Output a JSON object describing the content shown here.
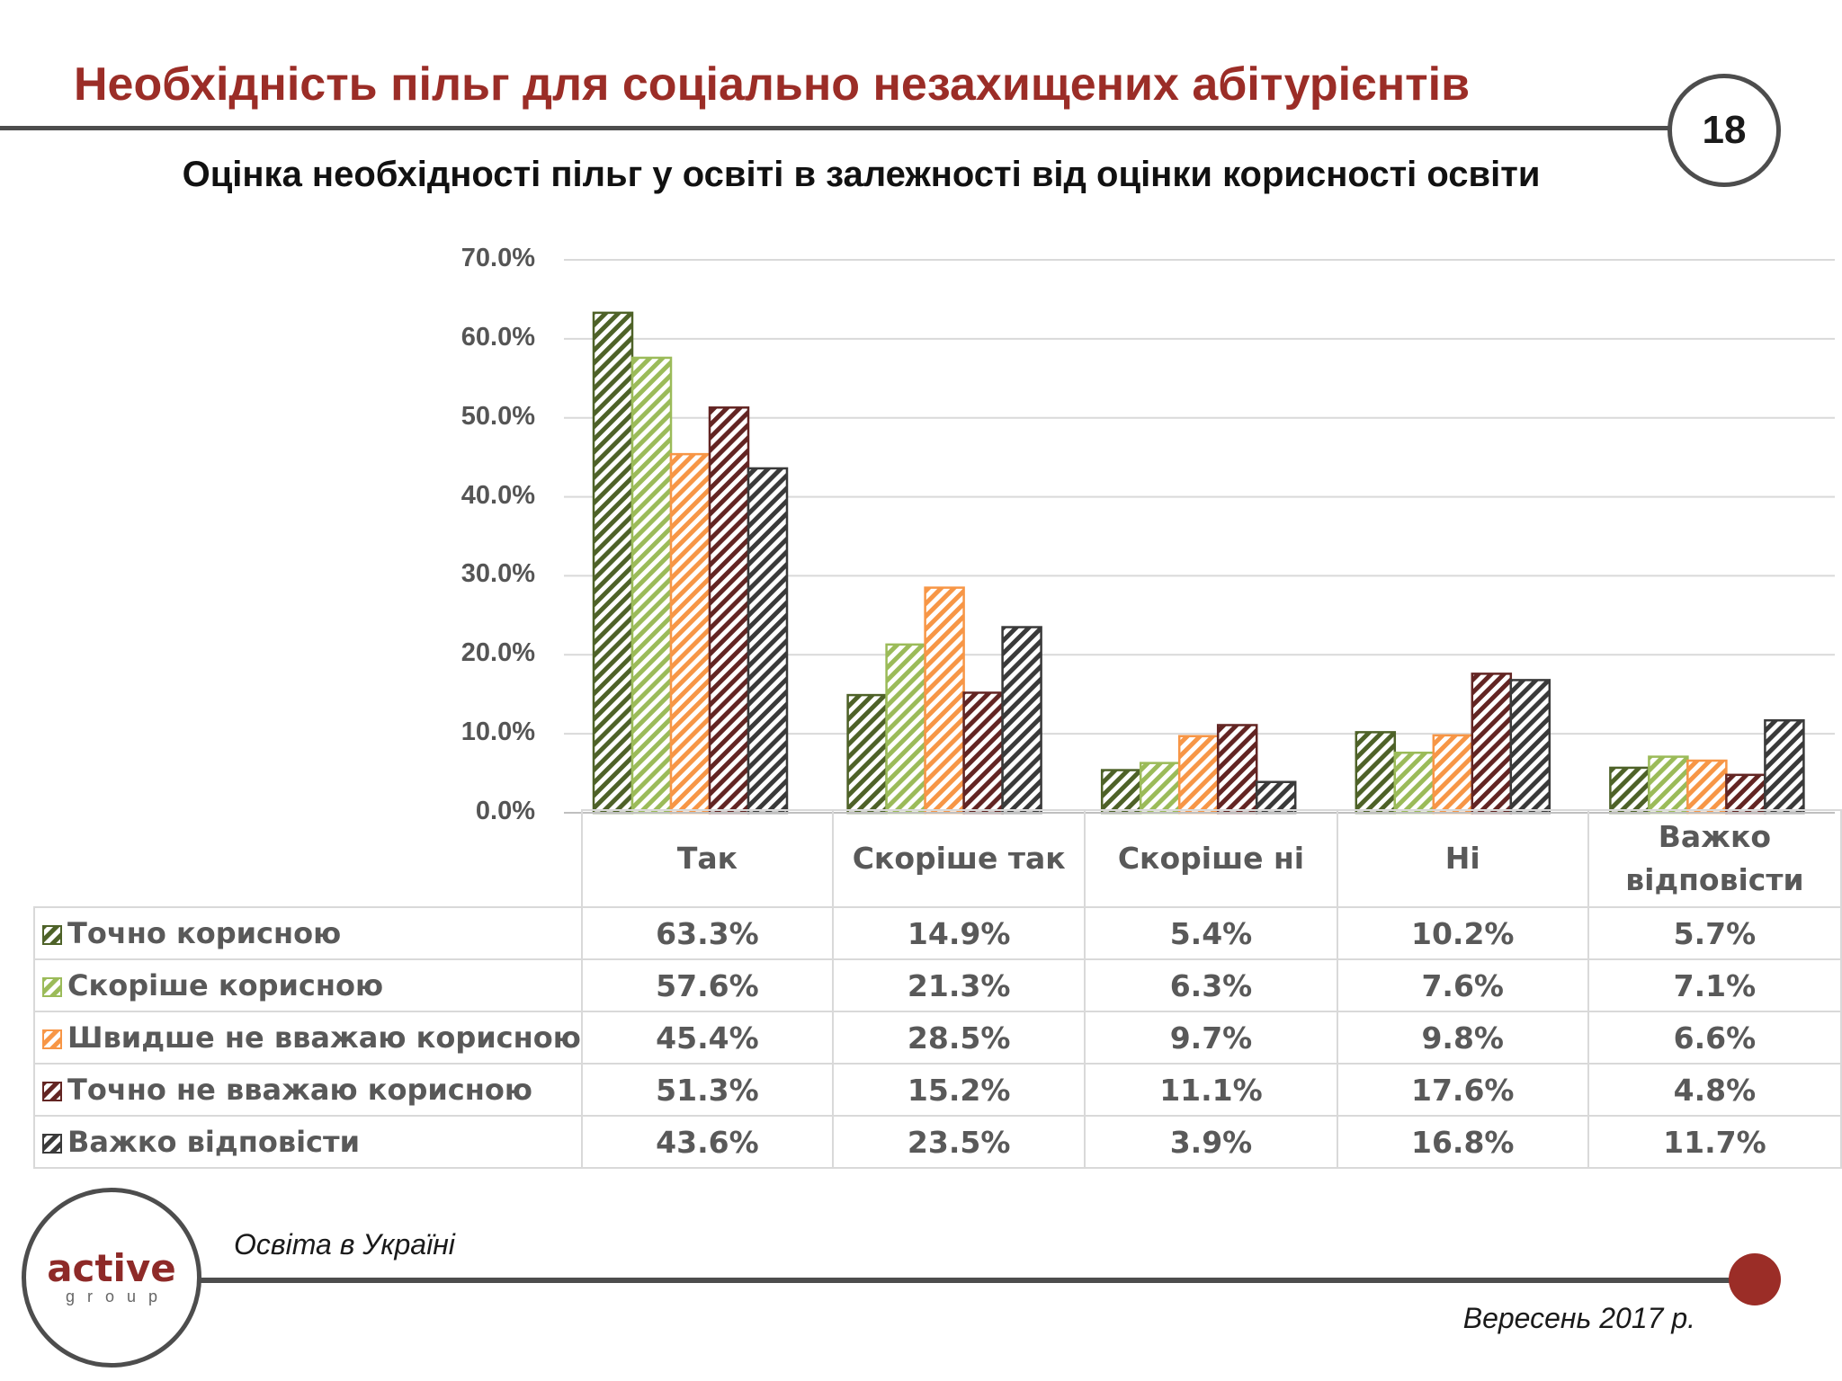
{
  "header": {
    "title": "Необхідність пільг для соціально незахищених абітурієнтів",
    "page_number": "18"
  },
  "chart_data": {
    "type": "bar",
    "title": "Оцінка необхідності пільг у освіті в залежності від оцінки корисності освіти",
    "xlabel": "",
    "ylabel": "",
    "ylim": [
      0,
      70
    ],
    "yticks": [
      "0.0%",
      "10.0%",
      "20.0%",
      "30.0%",
      "40.0%",
      "50.0%",
      "60.0%",
      "70.0%"
    ],
    "grid": true,
    "categories": [
      "Так",
      "Скоріше так",
      "Скоріше ні",
      "Ні",
      "Важко відповісти"
    ],
    "series": [
      {
        "name": "Точно корисною",
        "color": "#4e6228",
        "values": [
          63.3,
          14.9,
          5.4,
          10.2,
          5.7
        ],
        "labels": [
          "63.3%",
          "14.9%",
          "5.4%",
          "10.2%",
          "5.7%"
        ]
      },
      {
        "name": "Скоріше корисною",
        "color": "#9bbb59",
        "values": [
          57.6,
          21.3,
          6.3,
          7.6,
          7.1
        ],
        "labels": [
          "57.6%",
          "21.3%",
          "6.3%",
          "7.6%",
          "7.1%"
        ]
      },
      {
        "name": "Швидше не вважаю корисною",
        "color": "#f79646",
        "values": [
          45.4,
          28.5,
          9.7,
          9.8,
          6.6
        ],
        "labels": [
          "45.4%",
          "28.5%",
          "9.7%",
          "9.8%",
          "6.6%"
        ]
      },
      {
        "name": "Точно не вважаю корисною",
        "color": "#632523",
        "values": [
          51.3,
          15.2,
          11.1,
          17.6,
          4.8
        ],
        "labels": [
          "51.3%",
          "15.2%",
          "11.1%",
          "17.6%",
          "4.8%"
        ]
      },
      {
        "name": "Важко відповісти",
        "color": "#3a3a3a",
        "values": [
          43.6,
          23.5,
          3.9,
          16.8,
          11.7
        ],
        "labels": [
          "43.6%",
          "23.5%",
          "3.9%",
          "16.8%",
          "11.7%"
        ]
      }
    ]
  },
  "footer": {
    "logo_main": "active",
    "logo_sub": "group",
    "left_text": "Освіта в Україні",
    "right_text": "Вересень 2017 р."
  }
}
